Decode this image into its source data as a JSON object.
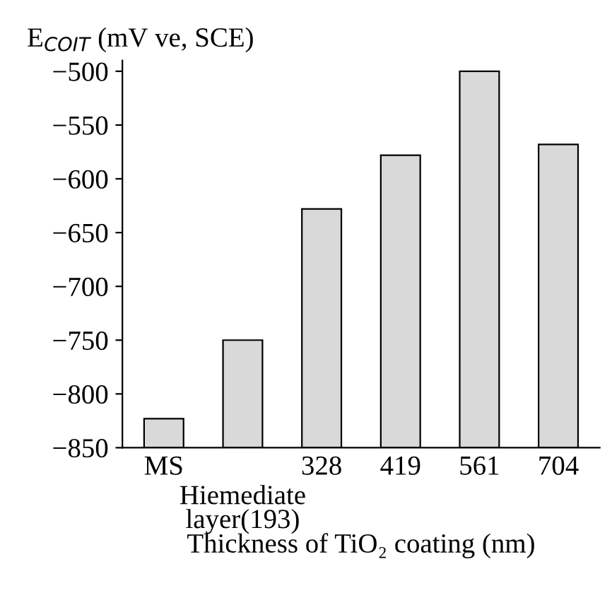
{
  "chart_data": {
    "type": "bar",
    "ylabel": "E$_{COIT}$ (mV ve, SCE)",
    "xlabel": "Thickness of TiO₂ coating (nm)",
    "categories": [
      "MS",
      "Hiemediate\nlayer(193)",
      "328",
      "419",
      "561",
      "704"
    ],
    "values": [
      27,
      100,
      222,
      272,
      350,
      282
    ],
    "base": [
      -850,
      -850,
      -850,
      -850,
      -850,
      -850
    ],
    "color": "#d9d9d9",
    "ylim": [
      -850,
      -490
    ],
    "yticks": [
      -850,
      -800,
      -750,
      -700,
      -650,
      -600,
      -550,
      -500
    ],
    "grid": false
  }
}
